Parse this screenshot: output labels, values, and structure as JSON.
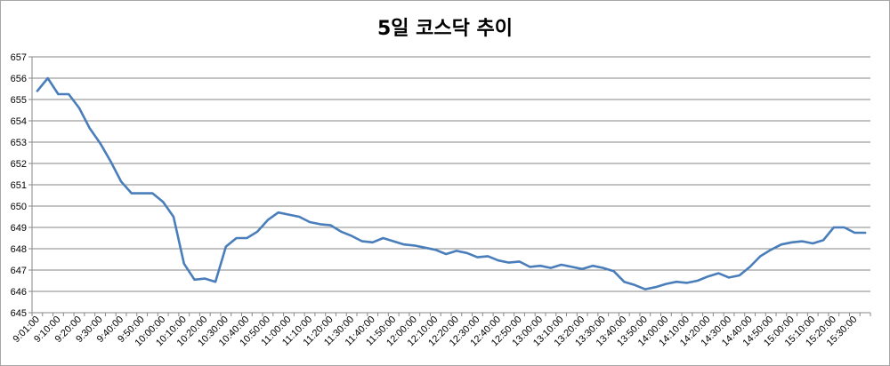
{
  "chart_data": {
    "type": "line",
    "title": "5일 코스닥 추이",
    "xlabel": "",
    "ylabel": "",
    "ylim": [
      645,
      657
    ],
    "ytick_step": 1,
    "grid": true,
    "legend": "none",
    "line_color": "#4a7ebb",
    "x_tick_labels": [
      "9:01:00",
      "9:10:00",
      "9:20:00",
      "9:30:00",
      "9:40:00",
      "9:50:00",
      "10:00:00",
      "10:10:00",
      "10:20:00",
      "10:30:00",
      "10:40:00",
      "10:50:00",
      "11:00:00",
      "11:10:00",
      "11:20:00",
      "11:30:00",
      "11:40:00",
      "11:50:00",
      "12:00:00",
      "12:10:00",
      "12:20:00",
      "12:30:00",
      "12:40:00",
      "12:50:00",
      "13:00:00",
      "13:10:00",
      "13:20:00",
      "13:30:00",
      "13:40:00",
      "13:50:00",
      "14:00:00",
      "14:10:00",
      "14:20:00",
      "14:30:00",
      "14:40:00",
      "14:50:00",
      "15:00:00",
      "15:10:00",
      "15:20:00",
      "15:30:00"
    ],
    "series": [
      {
        "values": [
          655.4,
          656.0,
          655.25,
          655.25,
          654.6,
          653.65,
          652.95,
          652.1,
          651.15,
          650.6,
          650.6,
          650.6,
          650.2,
          649.5,
          647.3,
          646.55,
          646.6,
          646.45,
          648.1,
          648.5,
          648.5,
          648.8,
          649.35,
          649.7,
          649.6,
          649.5,
          649.25,
          649.15,
          649.1,
          648.8,
          648.6,
          648.35,
          648.3,
          648.5,
          648.35,
          648.2,
          648.15,
          648.05,
          647.95,
          647.75,
          647.9,
          647.8,
          647.6,
          647.65,
          647.45,
          647.35,
          647.4,
          647.15,
          647.2,
          647.1,
          647.25,
          647.15,
          647.05,
          647.2,
          647.1,
          646.95,
          646.45,
          646.3,
          646.1,
          646.2,
          646.35,
          646.45,
          646.4,
          646.5,
          646.7,
          646.85,
          646.65,
          646.75,
          647.15,
          647.65,
          647.95,
          648.2,
          648.3,
          648.35,
          648.25,
          648.4,
          649.0,
          649.0,
          648.75,
          648.75
        ]
      }
    ]
  }
}
